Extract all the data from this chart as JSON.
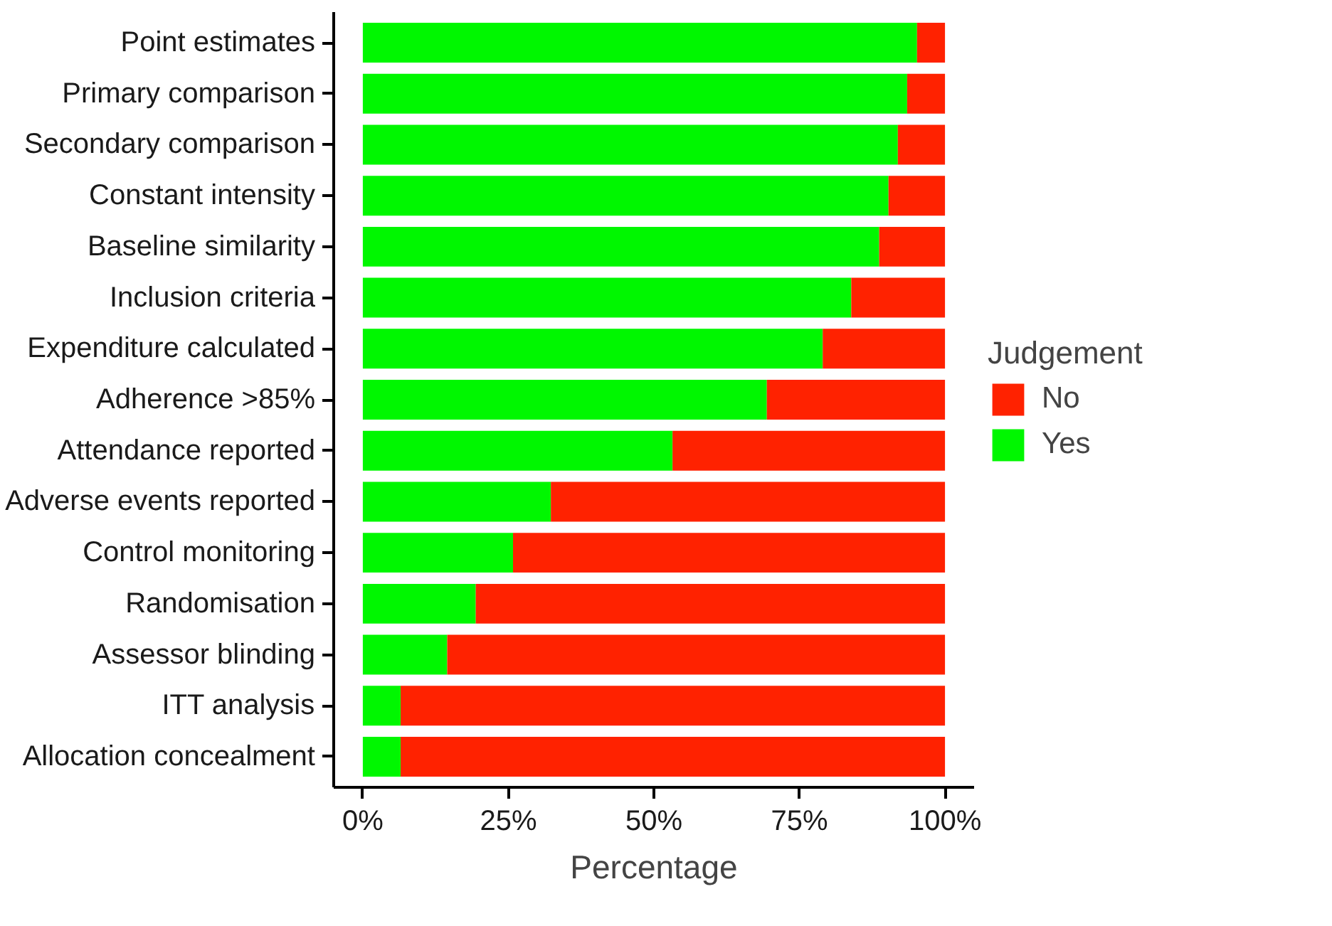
{
  "chart_data": {
    "type": "bar",
    "orientation": "horizontal",
    "stacked": true,
    "categories": [
      "Point estimates",
      "Primary comparison",
      "Secondary comparison",
      "Constant intensity",
      "Baseline similarity",
      "Inclusion criteria",
      "Expenditure calculated",
      "Adherence >85%",
      "Attendance reported",
      "Adverse events reported",
      "Control monitoring",
      "Randomisation",
      "Assessor blinding",
      "ITT analysis",
      "Allocation concealment"
    ],
    "series": [
      {
        "name": "Yes",
        "color": "#00f700",
        "values": [
          95.2,
          93.5,
          91.9,
          90.3,
          88.7,
          83.9,
          79.0,
          69.4,
          53.2,
          32.3,
          25.8,
          19.4,
          14.5,
          6.5,
          6.5
        ]
      },
      {
        "name": "No",
        "color": "#ff2200",
        "values": [
          4.8,
          6.5,
          8.1,
          9.7,
          11.3,
          16.1,
          21.0,
          30.6,
          46.8,
          67.7,
          74.2,
          80.6,
          85.5,
          93.5,
          93.5
        ]
      }
    ],
    "xlabel": "Percentage",
    "legend_title": "Judgement",
    "legend": "right",
    "xlim": [
      -5,
      105
    ],
    "xticks": [
      {
        "value": 0,
        "label": "0%"
      },
      {
        "value": 25,
        "label": "25%"
      },
      {
        "value": 50,
        "label": "50%"
      },
      {
        "value": 75,
        "label": "75%"
      },
      {
        "value": 100,
        "label": "100%"
      }
    ],
    "grid": false
  }
}
